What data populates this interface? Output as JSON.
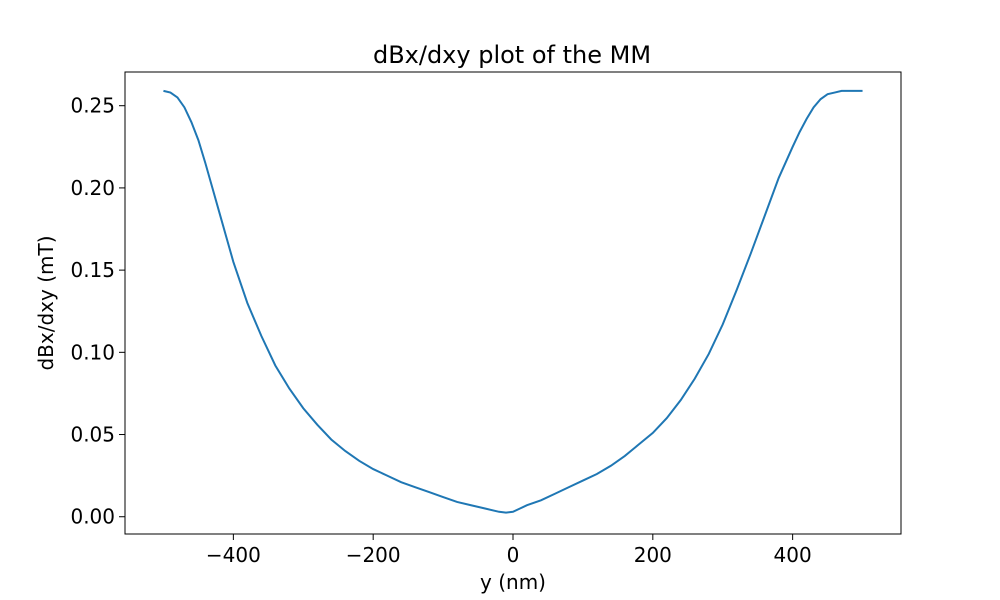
{
  "chart_data": {
    "type": "line",
    "title": "dBx/dxy plot of the MM",
    "xlabel": "y (nm)",
    "ylabel": "dBx/dxy (mT)",
    "xlim": [
      -555,
      555
    ],
    "ylim": [
      -0.0105,
      0.2705
    ],
    "xticks": [
      -400,
      -200,
      0,
      200,
      400
    ],
    "xtick_labels": [
      "−400",
      "−200",
      "0",
      "200",
      "400"
    ],
    "yticks": [
      0.0,
      0.05,
      0.1,
      0.15,
      0.2,
      0.25
    ],
    "ytick_labels": [
      "0.00",
      "0.05",
      "0.10",
      "0.15",
      "0.20",
      "0.25"
    ],
    "grid": false,
    "line_color": "#1f77b4",
    "series": [
      {
        "x": [
          -500,
          -490,
          -480,
          -470,
          -460,
          -450,
          -440,
          -430,
          -420,
          -410,
          -400,
          -380,
          -360,
          -340,
          -320,
          -300,
          -280,
          -260,
          -240,
          -220,
          -200,
          -180,
          -160,
          -140,
          -120,
          -100,
          -80,
          -60,
          -40,
          -20,
          -10,
          0,
          10,
          20,
          40,
          60,
          80,
          100,
          120,
          140,
          160,
          180,
          200,
          220,
          240,
          260,
          280,
          300,
          320,
          340,
          360,
          380,
          400,
          410,
          420,
          430,
          440,
          450,
          460,
          470,
          480,
          490,
          500
        ],
        "y": [
          0.259,
          0.258,
          0.255,
          0.249,
          0.24,
          0.229,
          0.215,
          0.2,
          0.185,
          0.17,
          0.155,
          0.13,
          0.11,
          0.092,
          0.078,
          0.066,
          0.056,
          0.047,
          0.04,
          0.034,
          0.029,
          0.025,
          0.021,
          0.018,
          0.015,
          0.012,
          0.009,
          0.007,
          0.005,
          0.003,
          0.0025,
          0.003,
          0.005,
          0.007,
          0.01,
          0.014,
          0.018,
          0.022,
          0.026,
          0.031,
          0.037,
          0.044,
          0.051,
          0.06,
          0.071,
          0.084,
          0.099,
          0.117,
          0.138,
          0.16,
          0.183,
          0.206,
          0.225,
          0.234,
          0.242,
          0.249,
          0.254,
          0.257,
          0.258,
          0.259,
          0.259,
          0.259,
          0.259
        ]
      }
    ]
  }
}
